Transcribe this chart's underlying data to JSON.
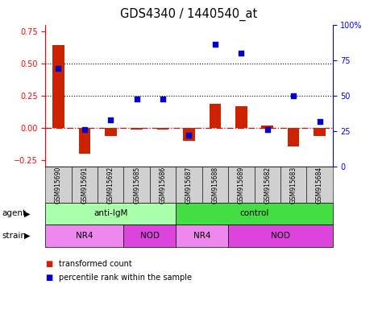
{
  "title": "GDS4340 / 1440540_at",
  "samples": [
    "GSM915690",
    "GSM915691",
    "GSM915692",
    "GSM915685",
    "GSM915686",
    "GSM915687",
    "GSM915688",
    "GSM915689",
    "GSM915682",
    "GSM915683",
    "GSM915684"
  ],
  "transformed_count": [
    0.64,
    -0.2,
    -0.06,
    -0.01,
    -0.01,
    -0.1,
    0.19,
    0.17,
    0.02,
    -0.14,
    -0.06
  ],
  "percentile_rank": [
    69,
    26,
    33,
    48,
    48,
    22,
    86,
    80,
    26,
    50,
    32
  ],
  "ylim_left": [
    -0.3,
    0.8
  ],
  "ylim_right": [
    0,
    100
  ],
  "yticks_left": [
    -0.25,
    0.0,
    0.25,
    0.5,
    0.75
  ],
  "yticks_right": [
    0,
    25,
    50,
    75,
    100
  ],
  "bar_color": "#cc2200",
  "dot_color": "#0000cc",
  "hline_dotted_vals": [
    0.25,
    0.5
  ],
  "hline_dash_val": 0.0,
  "agent_segments": [
    {
      "label": "anti-IgM",
      "start": 0,
      "end": 5,
      "color": "#aaffaa"
    },
    {
      "label": "control",
      "start": 5,
      "end": 11,
      "color": "#44dd44"
    }
  ],
  "strain_segments": [
    {
      "label": "NR4",
      "start": 0,
      "end": 3,
      "color": "#ee88ee"
    },
    {
      "label": "NOD",
      "start": 3,
      "end": 5,
      "color": "#dd44dd"
    },
    {
      "label": "NR4",
      "start": 5,
      "end": 7,
      "color": "#ee88ee"
    },
    {
      "label": "NOD",
      "start": 7,
      "end": 11,
      "color": "#dd44dd"
    }
  ],
  "cell_bg": "#d0d0d0",
  "legend_bar_label": "transformed count",
  "legend_dot_label": "percentile rank within the sample",
  "bar_width": 0.45
}
